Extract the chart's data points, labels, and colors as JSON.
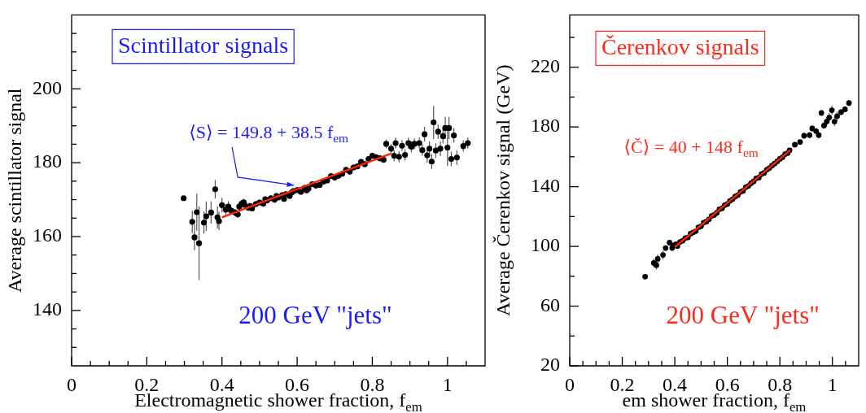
{
  "chart_data": [
    {
      "type": "scatter",
      "title": "Scintillator signals",
      "xlabel": "Electromagnetic shower fraction, f$_{em}$",
      "ylabel": "Average scintillator signal",
      "annotations": [
        {
          "text": "⟨S⟩ = 149.8 + 38.5 f$_{em}$",
          "x": 0.6,
          "y": 173
        },
        "200 GeV \"jets\""
      ],
      "xlim": [
        0,
        1.1
      ],
      "ylim": [
        125,
        220
      ],
      "xticks": [
        0,
        {
          "value": 0.05,
          "label": null
        },
        {
          "value": 0.1,
          "label": null
        },
        {
          "value": 0.15,
          "label": null
        },
        0.2,
        {
          "value": 0.25,
          "label": null
        },
        {
          "value": 0.3,
          "label": null
        },
        {
          "value": 0.35,
          "label": null
        },
        0.4,
        {
          "value": 0.45,
          "label": null
        },
        {
          "value": 0.5,
          "label": null
        },
        {
          "value": 0.55,
          "label": null
        },
        0.6,
        {
          "value": 0.65,
          "label": null
        },
        {
          "value": 0.7,
          "label": null
        },
        {
          "value": 0.75,
          "label": null
        },
        0.8,
        {
          "value": 0.85,
          "label": null
        },
        {
          "value": 0.9,
          "label": null
        },
        {
          "value": 0.95,
          "label": null
        },
        1,
        {
          "value": 1.05,
          "label": null
        }
      ],
      "yticks": [
        {
          "value": 130,
          "label": null
        },
        {
          "value": 135,
          "label": null
        },
        140,
        {
          "value": 145,
          "label": null
        },
        {
          "value": 150,
          "label": null
        },
        {
          "value": 155,
          "label": null
        },
        160,
        {
          "value": 165,
          "label": null
        },
        {
          "value": 170,
          "label": null
        },
        {
          "value": 175,
          "label": null
        },
        180,
        {
          "value": 185,
          "label": null
        },
        {
          "value": 190,
          "label": null
        },
        {
          "value": 195,
          "label": null
        },
        200,
        {
          "value": 205,
          "label": null
        },
        {
          "value": 210,
          "label": null
        },
        {
          "value": 215,
          "label": null
        }
      ],
      "grid": false,
      "legend": false,
      "series": [
        {
          "color": "#000000",
          "marker": "circle",
          "x": [
            0.298,
            0.321,
            0.327,
            0.333,
            0.339,
            0.352,
            0.358,
            0.371,
            0.382,
            0.388,
            0.392,
            0.4,
            0.41,
            0.417,
            0.425,
            0.435,
            0.442,
            0.446,
            0.452,
            0.458,
            0.46,
            0.47,
            0.475,
            0.48,
            0.49,
            0.5,
            0.51,
            0.515,
            0.52,
            0.53,
            0.54,
            0.545,
            0.55,
            0.56,
            0.565,
            0.57,
            0.58,
            0.585,
            0.59,
            0.6,
            0.61,
            0.62,
            0.625,
            0.63,
            0.64,
            0.65,
            0.66,
            0.67,
            0.68,
            0.69,
            0.7,
            0.71,
            0.72,
            0.73,
            0.74,
            0.75,
            0.76,
            0.77,
            0.78,
            0.79,
            0.8,
            0.81,
            0.82,
            0.83,
            0.837,
            0.85,
            0.858,
            0.862,
            0.871,
            0.879,
            0.887,
            0.896,
            0.904,
            0.912,
            0.925,
            0.933,
            0.939,
            0.946,
            0.952,
            0.958,
            0.963,
            0.969,
            0.975,
            0.981,
            0.988,
            0.994,
            1.0,
            1.004,
            1.01,
            1.017,
            1.025,
            1.042,
            1.054
          ],
          "values": [
            170.4,
            164.0,
            159.8,
            166.6,
            158.2,
            163.8,
            165.5,
            166.5,
            172.8,
            165.2,
            164.2,
            168.5,
            167.3,
            168.1,
            167.0,
            166.5,
            166.0,
            168.1,
            168.9,
            169.3,
            168.6,
            167.8,
            168.3,
            167.6,
            168.8,
            169.2,
            168.9,
            170.1,
            169.8,
            170.4,
            170.0,
            171.0,
            170.6,
            171.2,
            170.2,
            171.5,
            171.0,
            171.9,
            172.3,
            172.6,
            172.1,
            173.2,
            172.5,
            173.0,
            174.2,
            173.8,
            174.0,
            174.9,
            175.2,
            176.4,
            176.0,
            176.5,
            177.0,
            178.1,
            177.6,
            178.7,
            179.0,
            180.2,
            179.6,
            181.0,
            181.9,
            181.5,
            181.2,
            180.8,
            185.1,
            183.8,
            181.9,
            185.3,
            181.6,
            184.6,
            182.1,
            185.3,
            184.3,
            185.1,
            185.3,
            183.4,
            187.7,
            182.0,
            183.8,
            180.3,
            190.9,
            183.3,
            188.4,
            183.8,
            187.2,
            189.4,
            184.1,
            189.4,
            181.0,
            187.4,
            181.4,
            184.5,
            185.3
          ],
          "errors": [
            null,
            3,
            3.5,
            5,
            10,
            3,
            4,
            3,
            2.5,
            3,
            2.5,
            2,
            1.5,
            1.5,
            1,
            1,
            1,
            1,
            1,
            1,
            0.8,
            0.8,
            0.8,
            0.8,
            0.8,
            0.8,
            0.8,
            0.8,
            0.8,
            0.8,
            0.8,
            0.8,
            0.8,
            0.8,
            0.8,
            0.8,
            0.8,
            0.8,
            0.8,
            0.8,
            0.8,
            0.8,
            0.8,
            0.8,
            0.8,
            0.8,
            0.8,
            0.8,
            0.8,
            0.8,
            0.8,
            0.8,
            0.8,
            0.8,
            0.8,
            0.8,
            0.8,
            0.8,
            0.8,
            0.8,
            0.8,
            0.8,
            0.8,
            0.8,
            1.2,
            1.2,
            1.5,
            1.5,
            1.5,
            1.5,
            1.5,
            1.5,
            1.5,
            1.5,
            1.5,
            1.5,
            2,
            2,
            2,
            2,
            4.5,
            2,
            2,
            2,
            2,
            3,
            5,
            3,
            2,
            2,
            2,
            1.5,
            1.5
          ]
        },
        {
          "type": "line",
          "color": "#ff2200",
          "line_style": "solid",
          "marker": "none",
          "x": [
            0.4,
            0.85
          ],
          "values": [
            165.2,
            182.5
          ]
        }
      ]
    },
    {
      "type": "scatter",
      "title": "Čerenkov signals",
      "xlabel": "em shower fraction, f$_{em}$",
      "ylabel": "Average Čerenkov signal (GeV)",
      "annotations": [
        "⟨Č⟩ = 40 + 148 f$_{em}$",
        "200 GeV \"jets\""
      ],
      "xlim": [
        0,
        1.1
      ],
      "ylim": [
        20,
        255
      ],
      "xticks": [
        0,
        {
          "value": 0.05,
          "label": null
        },
        {
          "value": 0.1,
          "label": null
        },
        {
          "value": 0.15,
          "label": null
        },
        0.2,
        {
          "value": 0.25,
          "label": null
        },
        {
          "value": 0.3,
          "label": null
        },
        {
          "value": 0.35,
          "label": null
        },
        0.4,
        {
          "value": 0.45,
          "label": null
        },
        {
          "value": 0.5,
          "label": null
        },
        {
          "value": 0.55,
          "label": null
        },
        0.6,
        {
          "value": 0.65,
          "label": null
        },
        {
          "value": 0.7,
          "label": null
        },
        {
          "value": 0.75,
          "label": null
        },
        0.8,
        {
          "value": 0.85,
          "label": null
        },
        {
          "value": 0.9,
          "label": null
        },
        {
          "value": 0.95,
          "label": null
        },
        1,
        {
          "value": 1.05,
          "label": null
        }
      ],
      "yticks": [
        20,
        {
          "value": 40,
          "label": null
        },
        60,
        {
          "value": 80,
          "label": null
        },
        100,
        {
          "value": 120,
          "label": null
        },
        140,
        {
          "value": 160,
          "label": null
        },
        180,
        {
          "value": 200,
          "label": null
        },
        220,
        {
          "value": 240,
          "label": null
        }
      ],
      "grid": false,
      "legend": false,
      "series": [
        {
          "color": "#000000",
          "marker": "circle",
          "x": [
            0.287,
            0.32,
            0.33,
            0.335,
            0.355,
            0.365,
            0.38,
            0.39,
            0.395,
            0.405,
            0.41,
            0.42,
            0.43,
            0.44,
            0.45,
            0.46,
            0.47,
            0.48,
            0.49,
            0.5,
            0.51,
            0.52,
            0.53,
            0.54,
            0.55,
            0.56,
            0.57,
            0.58,
            0.59,
            0.6,
            0.61,
            0.62,
            0.63,
            0.64,
            0.65,
            0.66,
            0.67,
            0.68,
            0.69,
            0.7,
            0.71,
            0.72,
            0.73,
            0.74,
            0.75,
            0.76,
            0.77,
            0.78,
            0.79,
            0.8,
            0.81,
            0.82,
            0.83,
            0.837,
            0.857,
            0.877,
            0.892,
            0.913,
            0.923,
            0.938,
            0.948,
            0.958,
            0.968,
            0.978,
            0.988,
            0.998,
            1.008,
            1.018,
            1.033,
            1.048,
            1.063
          ],
          "values": [
            79.7,
            88.9,
            87.4,
            91.6,
            94.3,
            98.9,
            102.5,
            98.9,
            100.7,
            101.5,
            100.2,
            103.0,
            103.8,
            105.6,
            106.0,
            108.5,
            109.4,
            110.2,
            112.8,
            113.5,
            115.9,
            116.5,
            118.1,
            120.4,
            121.0,
            122.5,
            124.9,
            125.5,
            127.6,
            128.4,
            130.5,
            131.6,
            133.4,
            134.3,
            136.5,
            137.2,
            139.6,
            140.4,
            142.3,
            143.5,
            145.6,
            146.1,
            148.4,
            149.2,
            151.3,
            152.4,
            154.1,
            155.5,
            157.0,
            158.6,
            159.7,
            161.8,
            162.5,
            164.4,
            168.1,
            169.9,
            174.1,
            174.5,
            179.0,
            177.2,
            174.5,
            189.4,
            180.9,
            183.6,
            186.3,
            191.2,
            183.6,
            187.2,
            189.9,
            191.8,
            196.0
          ],
          "errors": [
            null,
            3,
            3,
            3,
            3,
            2,
            2,
            2,
            2,
            1.5,
            1.5,
            1.5,
            1.5,
            1,
            1,
            1,
            1,
            1,
            1,
            1,
            1,
            1,
            1,
            1,
            1,
            1,
            1,
            1,
            1,
            1,
            1,
            1,
            1,
            1,
            1,
            1,
            1,
            1,
            1,
            1,
            1,
            1,
            1,
            1,
            1,
            1,
            1,
            1,
            1,
            1,
            1,
            1,
            1,
            1.5,
            1.5,
            1.5,
            2,
            2,
            2,
            2,
            2,
            2,
            2,
            3,
            3,
            3,
            3,
            3,
            2,
            2,
            2
          ]
        },
        {
          "type": "line",
          "color": "#ff2200",
          "line_style": "solid",
          "marker": "none",
          "x": [
            0.4,
            0.84
          ],
          "values": [
            99.5,
            164.5
          ]
        }
      ]
    }
  ]
}
